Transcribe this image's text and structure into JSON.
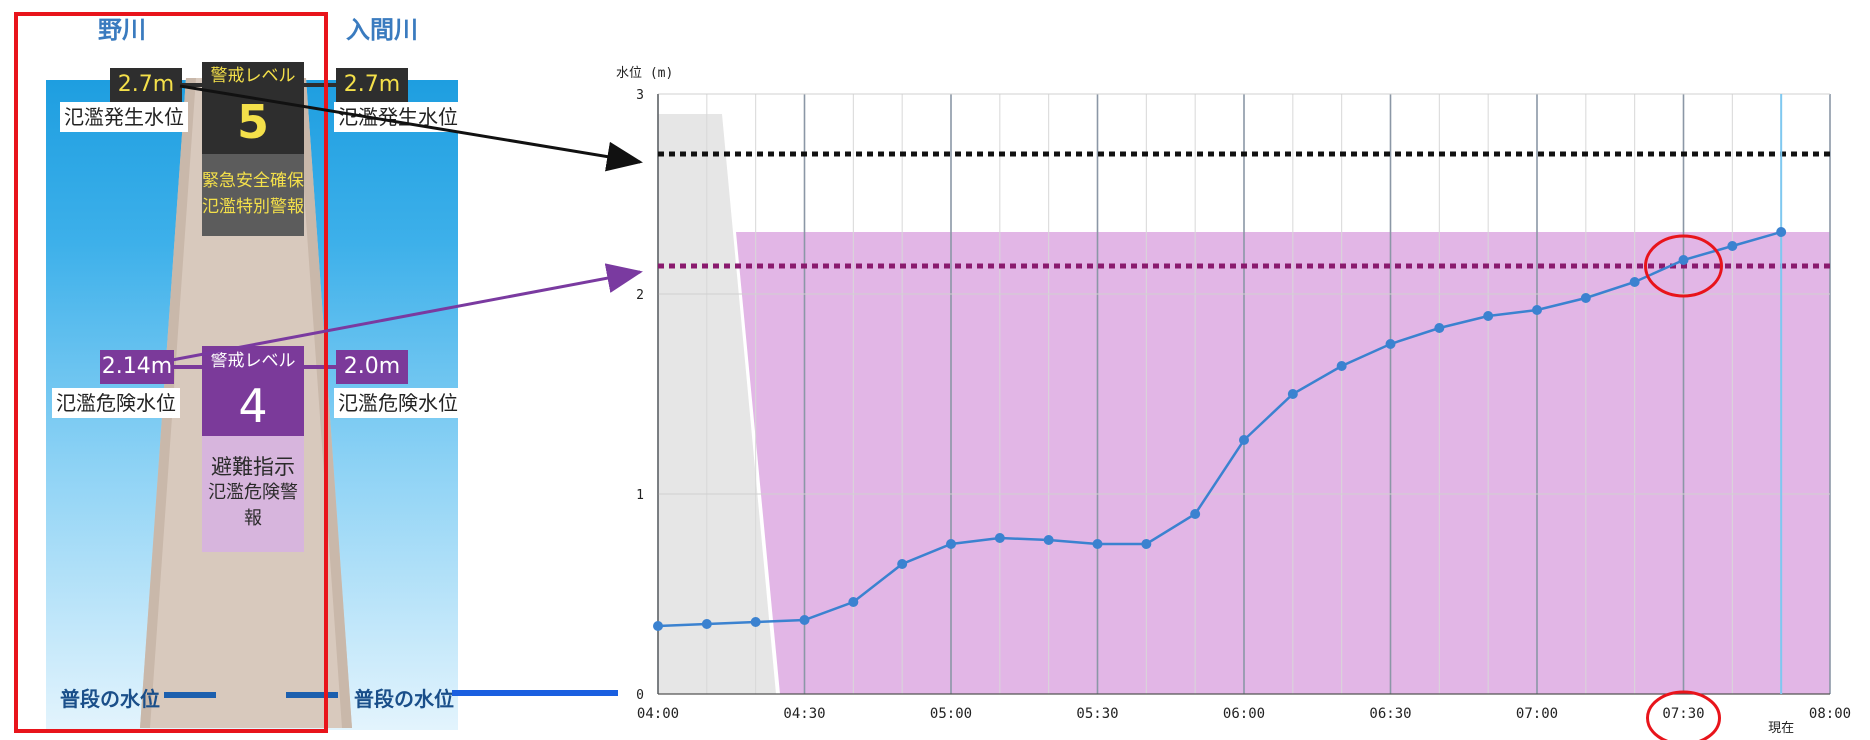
{
  "left_panel": {
    "river_left": "野川",
    "river_right": "入間川",
    "level5": {
      "title": "警戒レベル",
      "number": "5",
      "desc_line1": "緊急安全確保",
      "desc_line2": "氾濫特別警報",
      "left_value": "2.7m",
      "right_value": "2.7m",
      "left_label": "氾濫発生水位",
      "right_label": "氾濫発生水位"
    },
    "level4": {
      "title": "警戒レベル",
      "number": "4",
      "desc_line1": "避難指示",
      "desc_line2": "氾濫危険警報",
      "left_value": "2.14m",
      "right_value": "2.0m",
      "left_label": "氾濫危険水位",
      "right_label": "氾濫危険水位"
    },
    "normal_left": "普段の水位",
    "normal_right": "普段の水位",
    "colors": {
      "frame": "#e8141b",
      "level5_bg": "#2e2e2e",
      "level4_bg": "#7b3a9a",
      "level4_desc_bg": "#d7b5dd"
    }
  },
  "chart_data": {
    "type": "line",
    "ylabel": "水位 (m)",
    "ylim": [
      0,
      3
    ],
    "yticks": [
      "0",
      "1",
      "2",
      "3"
    ],
    "xticks": [
      "04:00",
      "04:30",
      "05:00",
      "05:30",
      "06:00",
      "06:30",
      "07:00",
      "07:30",
      "08:00"
    ],
    "current_label": "現在",
    "current_time": "07:50",
    "grid": true,
    "series": [
      {
        "x": [
          "04:00",
          "04:10",
          "04:20",
          "04:30",
          "04:40",
          "04:50",
          "05:00",
          "05:10",
          "05:20",
          "05:30",
          "05:40",
          "05:50",
          "06:00",
          "06:10",
          "06:20",
          "06:30",
          "06:40",
          "06:50",
          "07:00",
          "07:10",
          "07:20",
          "07:30",
          "07:40",
          "07:50"
        ],
        "values": [
          0.34,
          0.35,
          0.36,
          0.37,
          0.46,
          0.65,
          0.75,
          0.78,
          0.77,
          0.75,
          0.75,
          0.9,
          1.27,
          1.5,
          1.64,
          1.75,
          1.83,
          1.89,
          1.92,
          1.98,
          2.06,
          2.17,
          2.24,
          2.31
        ],
        "color": "#3b82d0"
      }
    ],
    "reference_lines": [
      {
        "value": 2.7,
        "color": "#111111"
      },
      {
        "value": 2.14,
        "color": "#8a1a6e"
      }
    ],
    "shaded_level": 2.31,
    "colors": {
      "shade": "#e2b6e6",
      "gray_area": "#e6e6e6",
      "current_line": "#7fc8f0",
      "highlight": "#e8141b"
    }
  }
}
